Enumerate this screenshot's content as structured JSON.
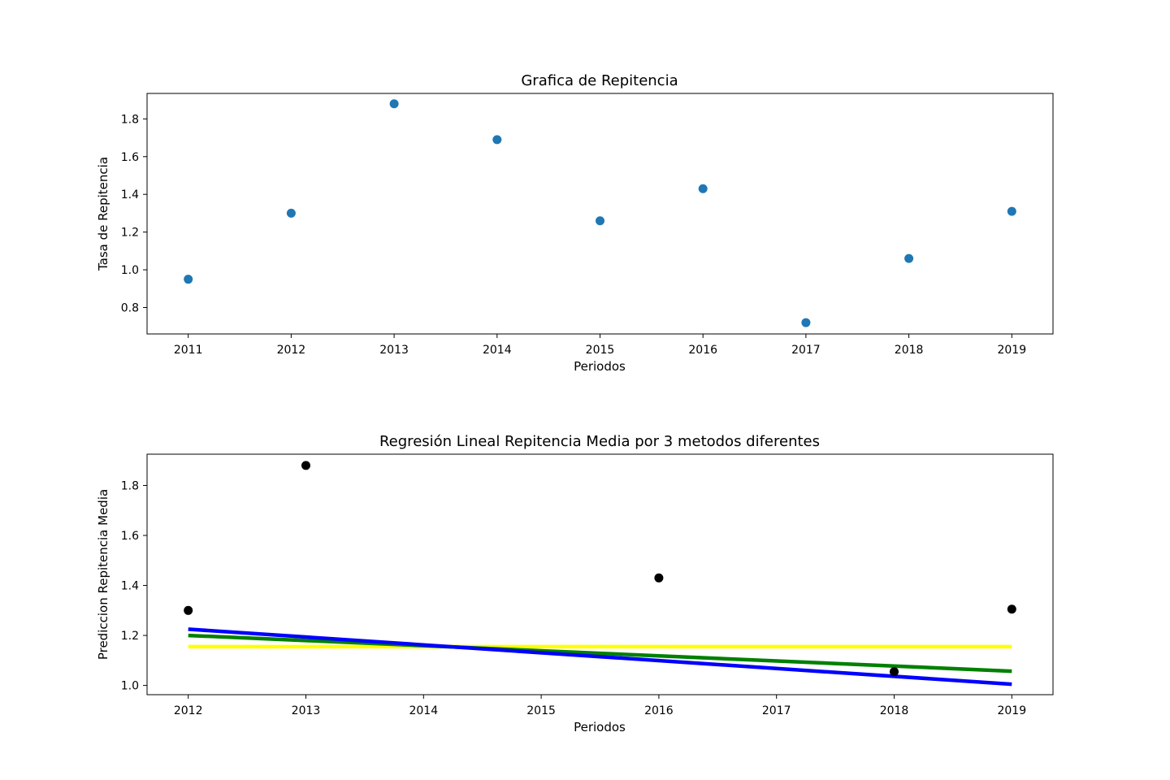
{
  "chart_data": [
    {
      "type": "scatter",
      "title": "Grafica de Repitencia",
      "xlabel": "Periodos",
      "ylabel": "Tasa de Repitencia",
      "xlim": [
        2010.6,
        2019.4
      ],
      "ylim": [
        0.66,
        1.935
      ],
      "xticks": [
        2011,
        2012,
        2013,
        2014,
        2015,
        2016,
        2017,
        2018,
        2019
      ],
      "yticks": [
        0.8,
        1.0,
        1.2,
        1.4,
        1.6,
        1.8
      ],
      "grid": false,
      "series": [
        {
          "color": "#1f77b4",
          "x": [
            2011,
            2012,
            2013,
            2014,
            2015,
            2016,
            2017,
            2018,
            2019
          ],
          "y": [
            0.95,
            1.3,
            1.88,
            1.69,
            1.26,
            1.43,
            0.72,
            1.06,
            1.31
          ]
        }
      ]
    },
    {
      "type": "scatter",
      "title": "Regresión Lineal Repitencia Media por 3 metodos diferentes",
      "xlabel": "Periodos",
      "ylabel": "Prediccion Repitencia Media",
      "xlim": [
        2011.65,
        2019.35
      ],
      "ylim": [
        0.963,
        1.925
      ],
      "xticks": [
        2012,
        2013,
        2014,
        2015,
        2016,
        2017,
        2018,
        2019
      ],
      "yticks": [
        1.0,
        1.2,
        1.4,
        1.6,
        1.8
      ],
      "grid": false,
      "series": [
        {
          "color": "#000000",
          "x": [
            2012,
            2013,
            2016,
            2018,
            2019
          ],
          "y": [
            1.3,
            1.88,
            1.43,
            1.055,
            1.305
          ]
        }
      ],
      "lines": [
        {
          "color": "#ffff00",
          "x": [
            2012,
            2019
          ],
          "y": [
            1.155,
            1.155
          ]
        },
        {
          "color": "#008000",
          "x": [
            2012,
            2019
          ],
          "y": [
            1.2,
            1.057
          ]
        },
        {
          "color": "#0000ff",
          "x": [
            2012,
            2019
          ],
          "y": [
            1.225,
            1.005
          ]
        }
      ]
    }
  ]
}
